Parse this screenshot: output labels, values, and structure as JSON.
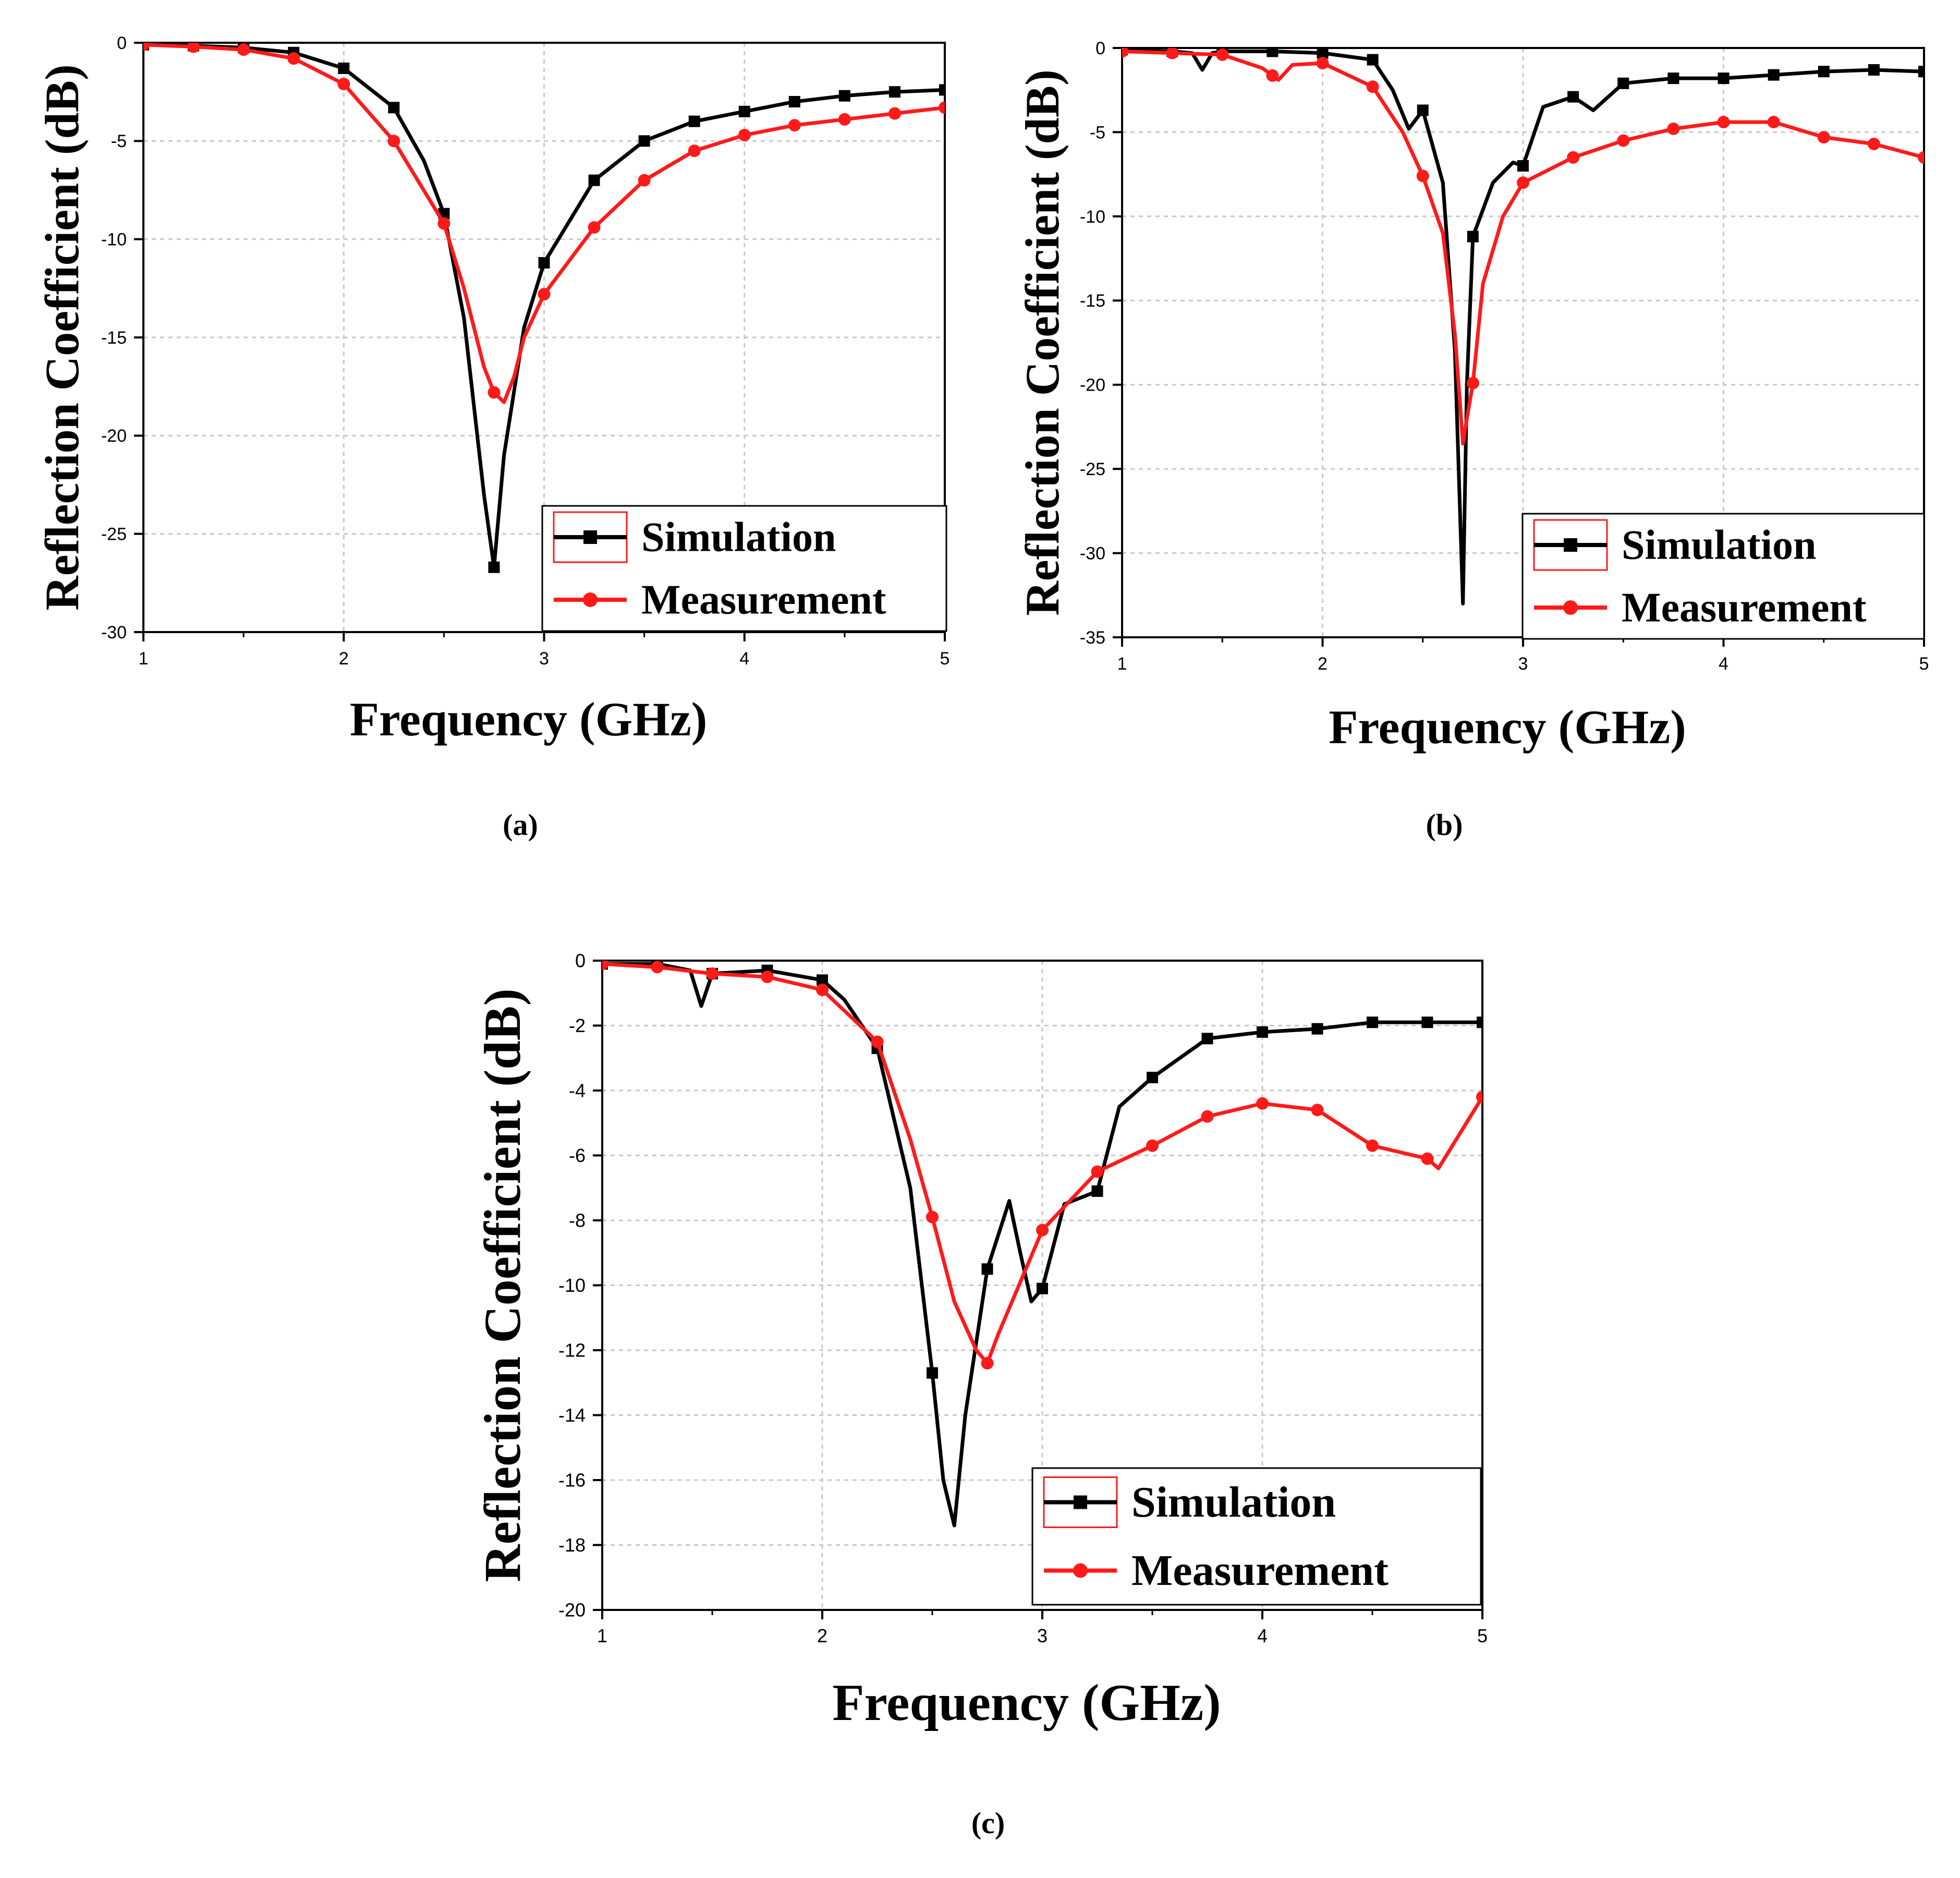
{
  "figure": {
    "panels": [
      {
        "id": "a",
        "caption": "(a)"
      },
      {
        "id": "b",
        "caption": "(b)"
      },
      {
        "id": "c",
        "caption": "(c)"
      }
    ]
  },
  "colors": {
    "simulation": "#000000",
    "measurement": "#ff1a1a",
    "grid": "#c8c8c8",
    "legend_box": "#ff1a1a"
  },
  "chart_data": [
    {
      "id": "a",
      "type": "line",
      "title": "",
      "caption": "(a)",
      "xlabel": "Frequency (GHz)",
      "ylabel": "Reflection Coefficient (dB)",
      "xlim": [
        1,
        5
      ],
      "ylim": [
        -30,
        0
      ],
      "xticks": [
        "1",
        "2",
        "3",
        "4",
        "5"
      ],
      "yticks": [
        "0",
        "-5",
        "-10",
        "-15",
        "-20",
        "-25",
        "-30"
      ],
      "grid": true,
      "legend_position": "bottom-right",
      "series": [
        {
          "name": "Simulation",
          "color": "#000000",
          "marker": "square",
          "x": [
            1.0,
            1.25,
            1.5,
            1.75,
            2.0,
            2.25,
            2.4,
            2.5,
            2.6,
            2.7,
            2.75,
            2.8,
            2.9,
            3.0,
            3.25,
            3.5,
            3.75,
            4.0,
            4.25,
            4.5,
            4.75,
            5.0
          ],
          "y": [
            -0.1,
            -0.15,
            -0.25,
            -0.5,
            -1.3,
            -3.3,
            -6.0,
            -8.7,
            -14.0,
            -23.0,
            -26.7,
            -21.0,
            -14.5,
            -11.2,
            -7.0,
            -5.0,
            -4.0,
            -3.5,
            -3.0,
            -2.7,
            -2.5,
            -2.4
          ],
          "markers_x": [
            1.0,
            1.25,
            1.5,
            1.75,
            2.0,
            2.25,
            2.5,
            2.75,
            3.0,
            3.25,
            3.5,
            3.75,
            4.0,
            4.25,
            4.5,
            4.75,
            5.0
          ]
        },
        {
          "name": "Measurement",
          "color": "#ff1a1a",
          "marker": "circle",
          "x": [
            1.0,
            1.25,
            1.5,
            1.75,
            2.0,
            2.25,
            2.5,
            2.6,
            2.7,
            2.75,
            2.8,
            2.85,
            2.9,
            3.0,
            3.25,
            3.5,
            3.75,
            4.0,
            4.25,
            4.5,
            4.75,
            5.0
          ],
          "y": [
            -0.1,
            -0.2,
            -0.35,
            -0.8,
            -2.1,
            -5.0,
            -9.2,
            -12.5,
            -16.5,
            -17.8,
            -18.3,
            -17.0,
            -15.0,
            -12.8,
            -9.4,
            -7.0,
            -5.5,
            -4.7,
            -4.2,
            -3.9,
            -3.6,
            -3.3
          ],
          "markers_x": [
            1.0,
            1.25,
            1.5,
            1.75,
            2.0,
            2.25,
            2.5,
            2.75,
            3.0,
            3.25,
            3.5,
            3.75,
            4.0,
            4.25,
            4.5,
            4.75,
            5.0
          ]
        }
      ]
    },
    {
      "id": "b",
      "type": "line",
      "title": "",
      "caption": "(b)",
      "xlabel": "Frequency (GHz)",
      "ylabel": "Reflection Coefficient (dB)",
      "xlim": [
        1,
        5
      ],
      "ylim": [
        -35,
        0
      ],
      "xticks": [
        "1",
        "2",
        "3",
        "4",
        "5"
      ],
      "yticks": [
        "0",
        "-5",
        "-10",
        "-15",
        "-20",
        "-25",
        "-30",
        "-35"
      ],
      "grid": true,
      "legend_position": "bottom-right",
      "series": [
        {
          "name": "Simulation",
          "color": "#000000",
          "marker": "square",
          "x": [
            1.0,
            1.25,
            1.35,
            1.4,
            1.45,
            1.5,
            1.75,
            2.0,
            2.25,
            2.35,
            2.43,
            2.5,
            2.6,
            2.66,
            2.7,
            2.72,
            2.75,
            2.85,
            2.95,
            3.0,
            3.1,
            3.25,
            3.35,
            3.5,
            3.75,
            4.0,
            4.25,
            4.5,
            4.75,
            5.0
          ],
          "y": [
            -0.1,
            -0.2,
            -0.3,
            -1.3,
            -0.3,
            -0.2,
            -0.2,
            -0.3,
            -0.7,
            -2.5,
            -4.8,
            -3.7,
            -8.0,
            -18.0,
            -33.0,
            -20.0,
            -11.2,
            -8.0,
            -6.8,
            -7.0,
            -3.5,
            -2.9,
            -3.7,
            -2.1,
            -1.8,
            -1.8,
            -1.6,
            -1.4,
            -1.3,
            -1.4
          ],
          "markers_x": [
            1.0,
            1.25,
            1.5,
            1.75,
            2.0,
            2.25,
            2.5,
            2.75,
            3.0,
            3.25,
            3.5,
            3.75,
            4.0,
            4.25,
            4.5,
            4.75,
            5.0
          ]
        },
        {
          "name": "Measurement",
          "color": "#ff1a1a",
          "marker": "circle",
          "x": [
            1.0,
            1.25,
            1.5,
            1.7,
            1.78,
            1.85,
            2.0,
            2.25,
            2.4,
            2.5,
            2.6,
            2.66,
            2.7,
            2.72,
            2.75,
            2.8,
            2.9,
            3.0,
            3.25,
            3.5,
            3.75,
            4.0,
            4.25,
            4.5,
            4.75,
            5.0
          ],
          "y": [
            -0.2,
            -0.3,
            -0.4,
            -1.2,
            -1.9,
            -1.0,
            -0.9,
            -2.3,
            -5.0,
            -7.6,
            -11.0,
            -17.0,
            -23.5,
            -22.0,
            -19.9,
            -14.0,
            -10.0,
            -8.0,
            -6.5,
            -5.5,
            -4.8,
            -4.4,
            -4.4,
            -5.3,
            -5.7,
            -6.5
          ],
          "markers_x": [
            1.0,
            1.25,
            1.5,
            1.75,
            2.0,
            2.25,
            2.5,
            2.75,
            3.0,
            3.25,
            3.5,
            3.75,
            4.0,
            4.25,
            4.5,
            4.75,
            5.0
          ]
        }
      ]
    },
    {
      "id": "c",
      "type": "line",
      "title": "",
      "caption": "(c)",
      "xlabel": "Frequency (GHz)",
      "ylabel": "Reflection Coefficient (dB)",
      "xlim": [
        1,
        5
      ],
      "ylim": [
        -20,
        0
      ],
      "xticks": [
        "1",
        "2",
        "3",
        "4",
        "5"
      ],
      "yticks": [
        "0",
        "-2",
        "-4",
        "-6",
        "-8",
        "-10",
        "-12",
        "-14",
        "-16",
        "-18",
        "-20"
      ],
      "grid": true,
      "legend_position": "bottom-right",
      "series": [
        {
          "name": "Simulation",
          "color": "#000000",
          "marker": "square",
          "x": [
            1.0,
            1.25,
            1.4,
            1.45,
            1.5,
            1.75,
            2.0,
            2.1,
            2.25,
            2.4,
            2.5,
            2.55,
            2.6,
            2.65,
            2.75,
            2.85,
            2.9,
            2.95,
            3.0,
            3.1,
            3.25,
            3.35,
            3.5,
            3.75,
            4.0,
            4.25,
            4.5,
            4.75,
            5.0
          ],
          "y": [
            -0.1,
            -0.1,
            -0.3,
            -1.4,
            -0.4,
            -0.3,
            -0.6,
            -1.2,
            -2.7,
            -7.0,
            -12.7,
            -16.0,
            -17.4,
            -14.0,
            -9.5,
            -7.4,
            -9.0,
            -10.5,
            -10.1,
            -7.5,
            -7.1,
            -4.5,
            -3.6,
            -2.4,
            -2.2,
            -2.1,
            -1.9,
            -1.9,
            -1.9
          ],
          "markers_x": [
            1.0,
            1.25,
            1.5,
            1.75,
            2.0,
            2.25,
            2.5,
            2.75,
            3.0,
            3.25,
            3.5,
            3.75,
            4.0,
            4.25,
            4.5,
            4.75,
            5.0
          ]
        },
        {
          "name": "Measurement",
          "color": "#ff1a1a",
          "marker": "circle",
          "x": [
            1.0,
            1.25,
            1.5,
            1.75,
            2.0,
            2.25,
            2.4,
            2.5,
            2.6,
            2.7,
            2.75,
            2.8,
            3.0,
            3.25,
            3.5,
            3.75,
            4.0,
            4.25,
            4.5,
            4.75,
            4.8,
            5.0
          ],
          "y": [
            -0.1,
            -0.2,
            -0.4,
            -0.5,
            -0.9,
            -2.5,
            -5.5,
            -7.9,
            -10.5,
            -12.0,
            -12.4,
            -11.5,
            -8.3,
            -6.5,
            -5.7,
            -4.8,
            -4.4,
            -4.6,
            -5.7,
            -6.1,
            -6.4,
            -4.2
          ],
          "markers_x": [
            1.0,
            1.25,
            1.5,
            1.75,
            2.0,
            2.25,
            2.5,
            2.75,
            3.0,
            3.25,
            3.5,
            3.75,
            4.0,
            4.25,
            4.5,
            4.75,
            5.0
          ]
        }
      ]
    }
  ]
}
